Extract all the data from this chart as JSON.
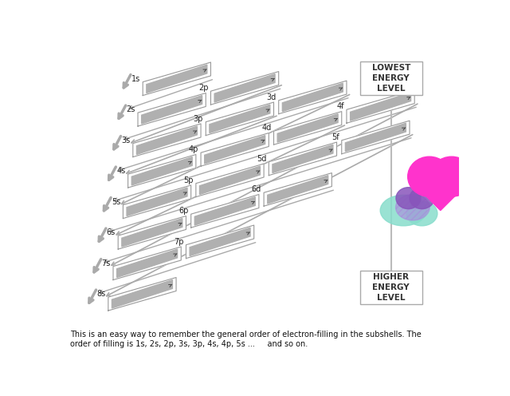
{
  "bg_color": "#ffffff",
  "subshells": [
    {
      "label": "1s",
      "row": 0,
      "col": 0
    },
    {
      "label": "2s",
      "row": 1,
      "col": 0
    },
    {
      "label": "2p",
      "row": 1,
      "col": 1
    },
    {
      "label": "3s",
      "row": 2,
      "col": 0
    },
    {
      "label": "3p",
      "row": 2,
      "col": 1
    },
    {
      "label": "3d",
      "row": 2,
      "col": 2
    },
    {
      "label": "4s",
      "row": 3,
      "col": 0
    },
    {
      "label": "4p",
      "row": 3,
      "col": 1
    },
    {
      "label": "4d",
      "row": 3,
      "col": 2
    },
    {
      "label": "4f",
      "row": 3,
      "col": 3
    },
    {
      "label": "5s",
      "row": 4,
      "col": 0
    },
    {
      "label": "5p",
      "row": 4,
      "col": 1
    },
    {
      "label": "5d",
      "row": 4,
      "col": 2
    },
    {
      "label": "5f",
      "row": 4,
      "col": 3
    },
    {
      "label": "6s",
      "row": 5,
      "col": 0
    },
    {
      "label": "6p",
      "row": 5,
      "col": 1
    },
    {
      "label": "6d",
      "row": 5,
      "col": 2
    },
    {
      "label": "7s",
      "row": 6,
      "col": 0
    },
    {
      "label": "7p",
      "row": 6,
      "col": 1
    },
    {
      "label": "8s",
      "row": 7,
      "col": 0
    }
  ],
  "lowest_text": "LOWEST\nENERGY\nLEVEL",
  "higher_text": "HIGHER\nENERGY\nLEVEL",
  "bottom_text": "This is an easy way to remember the general order of electron-filling in the subshells. The\norder of filling is 1s, 2s, 2p, 3s, 3p, 4s, 4p, 5s ...     and so on.",
  "bar_color": "#b0b0b0",
  "box_edge_color": "#999999",
  "text_color": "#222222",
  "diag_arrow_color": "#aaaaaa",
  "left_arrow_color": "#aaaaaa",
  "sign_line_color": "#bbbbbb",
  "sign_edge_color": "#aaaaaa",
  "row_max_cols": [
    0,
    1,
    2,
    3,
    3,
    2,
    1,
    0
  ]
}
